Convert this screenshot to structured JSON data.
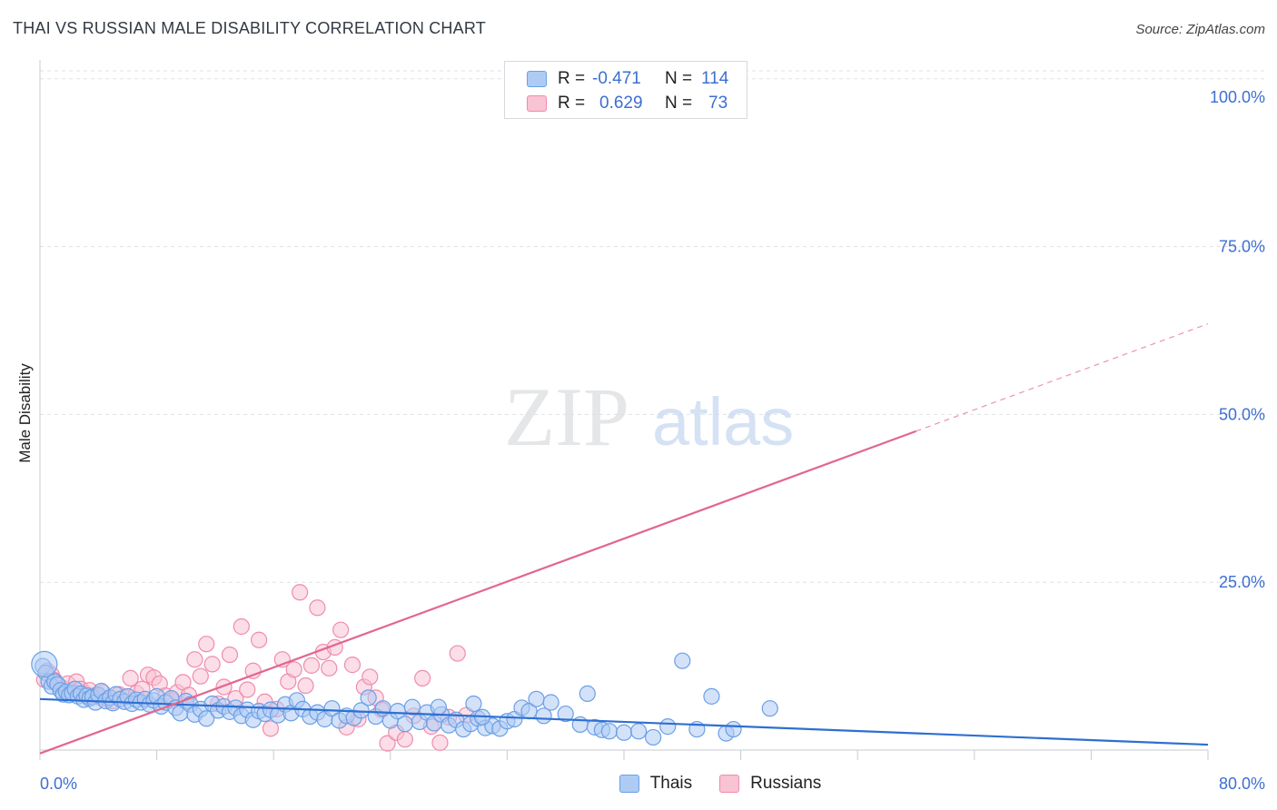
{
  "header": {
    "title": "THAI VS RUSSIAN MALE DISABILITY CORRELATION CHART",
    "source": "Source: ZipAtlas.com"
  },
  "watermark": {
    "zip": "ZIP",
    "atlas": "atlas"
  },
  "legend_top": {
    "rows": [
      {
        "r_label": "R =",
        "r_value": "-0.471",
        "n_label": "N =",
        "n_value": "114",
        "color": "#6a9fe8"
      },
      {
        "r_label": "R =",
        "r_value": "0.629",
        "n_label": "N =",
        "n_value": "73",
        "color": "#f08cab"
      }
    ]
  },
  "legend_bottom": {
    "thais": "Thais",
    "russians": "Russians"
  },
  "colors": {
    "thais_fill": "#aecbf3",
    "thais_stroke": "#6a9fe8",
    "thais_line": "#2f6fd0",
    "russians_fill": "#f8c3d3",
    "russians_stroke": "#f08cab",
    "russians_line": "#e2668f",
    "tick_text": "#3c6fd1"
  },
  "chart_data": {
    "type": "scatter",
    "title": "THAI VS RUSSIAN MALE DISABILITY CORRELATION CHART",
    "xlabel": "",
    "ylabel": "Male Disability",
    "xlim": [
      0,
      80
    ],
    "ylim": [
      0,
      102
    ],
    "x_tick_labels": [
      "0.0%",
      "80.0%"
    ],
    "y_ticks": [
      25,
      50,
      75,
      100
    ],
    "y_tick_labels": [
      "25.0%",
      "50.0%",
      "75.0%",
      "100.0%"
    ],
    "grid": true,
    "legend_position": "top-center",
    "series": [
      {
        "name": "Thais",
        "r": -0.471,
        "n": 114,
        "trend": {
          "x": [
            0,
            80
          ],
          "y": [
            7.6,
            0.8
          ]
        },
        "points": [
          [
            0.2,
            12.5
          ],
          [
            0.4,
            11.5
          ],
          [
            0.6,
            10.2
          ],
          [
            0.8,
            9.5
          ],
          [
            1.0,
            10.2
          ],
          [
            1.2,
            9.8
          ],
          [
            1.4,
            8.9
          ],
          [
            1.6,
            8.3
          ],
          [
            1.8,
            8.7
          ],
          [
            2.0,
            8.2
          ],
          [
            2.2,
            8.5
          ],
          [
            2.4,
            9.1
          ],
          [
            2.6,
            8.0
          ],
          [
            2.8,
            8.4
          ],
          [
            3.0,
            7.5
          ],
          [
            3.2,
            8.1
          ],
          [
            3.4,
            7.7
          ],
          [
            3.6,
            7.9
          ],
          [
            3.8,
            7.1
          ],
          [
            4.0,
            8.2
          ],
          [
            4.2,
            8.8
          ],
          [
            4.5,
            7.3
          ],
          [
            4.8,
            7.8
          ],
          [
            5.0,
            7.0
          ],
          [
            5.2,
            8.3
          ],
          [
            5.5,
            7.6
          ],
          [
            5.8,
            7.2
          ],
          [
            6.0,
            8.0
          ],
          [
            6.3,
            6.9
          ],
          [
            6.6,
            7.5
          ],
          [
            6.9,
            7.1
          ],
          [
            7.2,
            7.6
          ],
          [
            7.5,
            6.8
          ],
          [
            7.8,
            7.4
          ],
          [
            8.0,
            8.0
          ],
          [
            8.3,
            6.5
          ],
          [
            8.6,
            7.1
          ],
          [
            9.0,
            7.7
          ],
          [
            9.3,
            6.3
          ],
          [
            9.6,
            5.5
          ],
          [
            10.0,
            7.3
          ],
          [
            10.3,
            6.8
          ],
          [
            10.6,
            5.3
          ],
          [
            11.0,
            6.1
          ],
          [
            11.4,
            4.7
          ],
          [
            11.8,
            6.9
          ],
          [
            12.2,
            5.9
          ],
          [
            12.6,
            6.5
          ],
          [
            13.0,
            5.7
          ],
          [
            13.4,
            6.3
          ],
          [
            13.8,
            5.1
          ],
          [
            14.2,
            6.0
          ],
          [
            14.6,
            4.5
          ],
          [
            15.0,
            5.8
          ],
          [
            15.4,
            5.4
          ],
          [
            15.8,
            6.0
          ],
          [
            16.3,
            5.2
          ],
          [
            16.8,
            6.8
          ],
          [
            17.2,
            5.5
          ],
          [
            17.6,
            7.4
          ],
          [
            18.0,
            6.1
          ],
          [
            18.5,
            5.0
          ],
          [
            19.0,
            5.6
          ],
          [
            19.5,
            4.6
          ],
          [
            20.0,
            6.2
          ],
          [
            20.5,
            4.4
          ],
          [
            21.0,
            5.1
          ],
          [
            21.5,
            4.8
          ],
          [
            22.0,
            5.9
          ],
          [
            22.5,
            7.8
          ],
          [
            23.0,
            5.0
          ],
          [
            23.5,
            6.2
          ],
          [
            24.0,
            4.4
          ],
          [
            24.5,
            5.8
          ],
          [
            25.0,
            3.9
          ],
          [
            25.5,
            6.4
          ],
          [
            26.0,
            4.2
          ],
          [
            26.5,
            5.6
          ],
          [
            27.0,
            4.0
          ],
          [
            27.5,
            5.3
          ],
          [
            28.0,
            3.7
          ],
          [
            28.5,
            4.5
          ],
          [
            29.0,
            3.1
          ],
          [
            29.5,
            3.9
          ],
          [
            30.0,
            4.7
          ],
          [
            30.5,
            3.3
          ],
          [
            31.0,
            3.6
          ],
          [
            31.5,
            3.2
          ],
          [
            32.0,
            4.3
          ],
          [
            32.5,
            4.6
          ],
          [
            33.0,
            6.3
          ],
          [
            33.5,
            5.8
          ],
          [
            34.0,
            7.6
          ],
          [
            34.5,
            5.1
          ],
          [
            35.0,
            7.1
          ],
          [
            36.0,
            5.4
          ],
          [
            37.0,
            3.8
          ],
          [
            38.0,
            3.4
          ],
          [
            38.5,
            3.0
          ],
          [
            39.0,
            2.8
          ],
          [
            40.0,
            2.6
          ],
          [
            41.0,
            2.8
          ],
          [
            42.0,
            1.9
          ],
          [
            43.0,
            3.5
          ],
          [
            44.0,
            13.3
          ],
          [
            45.0,
            3.1
          ],
          [
            46.0,
            8.0
          ],
          [
            47.0,
            2.5
          ],
          [
            47.5,
            3.1
          ],
          [
            50.0,
            6.2
          ],
          [
            37.5,
            8.4
          ],
          [
            30.3,
            4.9
          ],
          [
            27.3,
            6.4
          ],
          [
            29.7,
            6.9
          ]
        ]
      },
      {
        "name": "Russians",
        "r": 0.629,
        "n": 73,
        "trend": {
          "x": [
            0,
            60
          ],
          "y": [
            -0.5,
            47.5
          ],
          "dashed_to": {
            "x": [
              60,
              80
            ],
            "y": [
              47.5,
              63.5
            ]
          }
        },
        "points": [
          [
            0.3,
            10.5
          ],
          [
            0.5,
            11.8
          ],
          [
            0.8,
            11.2
          ],
          [
            1.0,
            10.4
          ],
          [
            1.3,
            9.6
          ],
          [
            1.6,
            9.2
          ],
          [
            1.9,
            9.9
          ],
          [
            2.2,
            8.8
          ],
          [
            2.5,
            10.2
          ],
          [
            2.8,
            9.1
          ],
          [
            3.1,
            8.4
          ],
          [
            3.4,
            8.9
          ],
          [
            3.7,
            8.1
          ],
          [
            4.0,
            7.9
          ],
          [
            4.3,
            8.6
          ],
          [
            4.6,
            7.6
          ],
          [
            5.0,
            7.3
          ],
          [
            5.4,
            8.3
          ],
          [
            5.8,
            7.9
          ],
          [
            6.2,
            10.7
          ],
          [
            6.6,
            8.5
          ],
          [
            7.0,
            9.1
          ],
          [
            7.4,
            11.2
          ],
          [
            7.8,
            10.8
          ],
          [
            8.2,
            9.9
          ],
          [
            8.6,
            8.1
          ],
          [
            9.0,
            7.4
          ],
          [
            9.4,
            8.6
          ],
          [
            9.8,
            10.1
          ],
          [
            10.2,
            8.2
          ],
          [
            10.6,
            13.5
          ],
          [
            11.0,
            11.0
          ],
          [
            11.4,
            15.8
          ],
          [
            11.8,
            12.8
          ],
          [
            12.2,
            6.9
          ],
          [
            12.6,
            9.4
          ],
          [
            13.0,
            14.2
          ],
          [
            13.4,
            7.7
          ],
          [
            13.8,
            18.4
          ],
          [
            14.2,
            9.0
          ],
          [
            14.6,
            11.8
          ],
          [
            15.0,
            16.4
          ],
          [
            15.4,
            7.2
          ],
          [
            15.8,
            3.2
          ],
          [
            16.2,
            6.1
          ],
          [
            16.6,
            13.5
          ],
          [
            17.0,
            10.2
          ],
          [
            17.4,
            12.0
          ],
          [
            17.8,
            23.5
          ],
          [
            18.2,
            9.6
          ],
          [
            18.6,
            12.6
          ],
          [
            19.0,
            21.2
          ],
          [
            19.4,
            14.6
          ],
          [
            19.8,
            12.2
          ],
          [
            20.2,
            15.3
          ],
          [
            20.6,
            17.9
          ],
          [
            21.0,
            3.4
          ],
          [
            21.4,
            12.7
          ],
          [
            21.8,
            4.6
          ],
          [
            22.2,
            9.4
          ],
          [
            22.6,
            10.9
          ],
          [
            23.0,
            7.8
          ],
          [
            23.4,
            6.0
          ],
          [
            23.8,
            1.0
          ],
          [
            24.4,
            2.6
          ],
          [
            25.0,
            1.6
          ],
          [
            25.6,
            5.1
          ],
          [
            26.2,
            10.7
          ],
          [
            26.8,
            3.5
          ],
          [
            27.4,
            1.1
          ],
          [
            28.0,
            4.9
          ],
          [
            28.6,
            14.4
          ],
          [
            29.2,
            5.2
          ]
        ]
      }
    ]
  }
}
